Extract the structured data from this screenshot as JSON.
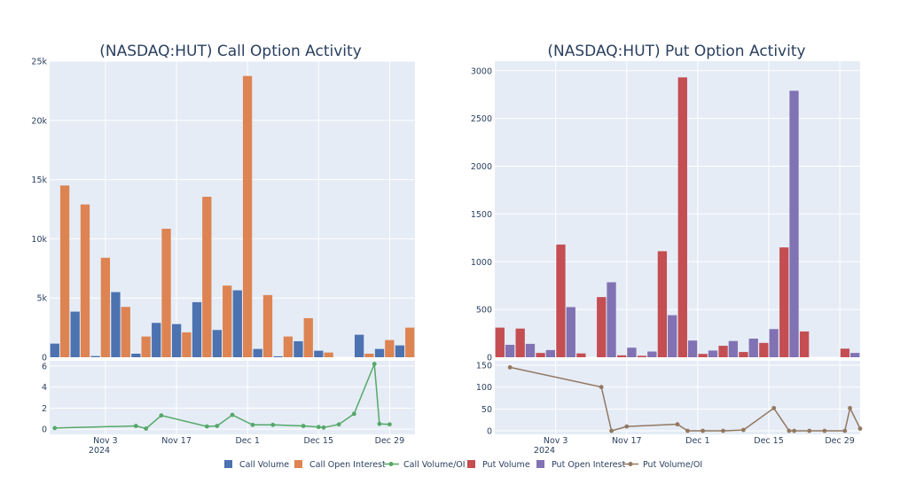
{
  "colors": {
    "plot_bg": "#e5ecf6",
    "grid": "#ffffff",
    "call_volume": "#4c72b0",
    "call_oi": "#dd8452",
    "call_ratio": "#55a868",
    "put_volume": "#c44e52",
    "put_oi": "#8172b3",
    "put_ratio": "#937860"
  },
  "legend": {
    "call_volume": "Call Volume",
    "call_oi": "Call Open Interest",
    "call_ratio": "Call Volume/OI",
    "put_volume": "Put Volume",
    "put_oi": "Put Open Interest",
    "put_ratio": "Put Volume/OI"
  },
  "chart_data": [
    {
      "type": "bar",
      "title": "(NASDAQ:HUT) Call Option Activity",
      "x_tick_labels": [
        "Nov 3",
        "Nov 17",
        "Dec 1",
        "Dec 15",
        "Dec 29"
      ],
      "x_tick_dates": [
        "2024-11-03",
        "2024-11-17",
        "2024-12-01",
        "2024-12-15",
        "2024-12-29"
      ],
      "x_year_label": "2024",
      "xlim": [
        "2024-10-23",
        "2025-01-03"
      ],
      "ylim": [
        0,
        25000
      ],
      "y_ticks": [
        0,
        5000,
        10000,
        15000,
        20000,
        25000
      ],
      "y_tick_labels": [
        "0",
        "5k",
        "10k",
        "15k",
        "20k",
        "25k"
      ],
      "series": [
        {
          "name": "Call Volume",
          "x": [
            "2024-10-25",
            "2024-10-29",
            "2024-11-02",
            "2024-11-06",
            "2024-11-10",
            "2024-11-14",
            "2024-11-18",
            "2024-11-22",
            "2024-11-26",
            "2024-11-30",
            "2024-12-04",
            "2024-12-08",
            "2024-12-12",
            "2024-12-16",
            "2024-12-20",
            "2024-12-24",
            "2024-12-28",
            "2025-01-01"
          ],
          "values": [
            1150,
            3850,
            100,
            5500,
            300,
            2900,
            2800,
            4650,
            2300,
            5650,
            700,
            80,
            1350,
            550,
            0,
            1900,
            700,
            1000
          ]
        },
        {
          "name": "Call Open Interest",
          "x": [
            "2024-10-25",
            "2024-10-29",
            "2024-11-02",
            "2024-11-06",
            "2024-11-10",
            "2024-11-14",
            "2024-11-18",
            "2024-11-22",
            "2024-11-26",
            "2024-11-30",
            "2024-12-04",
            "2024-12-08",
            "2024-12-12",
            "2024-12-16",
            "2024-12-20",
            "2024-12-24",
            "2024-12-28",
            "2025-01-01"
          ],
          "values": [
            14500,
            12900,
            8400,
            4250,
            1750,
            10850,
            2100,
            13550,
            6050,
            23750,
            5250,
            1750,
            3300,
            400,
            0,
            300,
            1450,
            2500
          ]
        }
      ],
      "ratio": {
        "name": "Call Volume/OI",
        "ylim": [
          -0.5,
          6.5
        ],
        "y_ticks": [
          0,
          2,
          4,
          6
        ],
        "x": [
          "2024-10-24",
          "2024-11-09",
          "2024-11-11",
          "2024-11-14",
          "2024-11-23",
          "2024-11-25",
          "2024-11-28",
          "2024-12-02",
          "2024-12-06",
          "2024-12-12",
          "2024-12-15",
          "2024-12-16",
          "2024-12-19",
          "2024-12-22",
          "2024-12-26",
          "2024-12-27",
          "2024-12-29"
        ],
        "values": [
          0.1,
          0.3,
          0.05,
          1.3,
          0.25,
          0.3,
          1.35,
          0.4,
          0.4,
          0.3,
          0.2,
          0.15,
          0.45,
          1.45,
          6.2,
          0.5,
          0.45
        ]
      }
    },
    {
      "type": "bar",
      "title": "(NASDAQ:HUT) Put Option Activity",
      "x_tick_labels": [
        "Nov 3",
        "Nov 17",
        "Dec 1",
        "Dec 15",
        "Dec 29"
      ],
      "x_tick_dates": [
        "2024-11-03",
        "2024-11-17",
        "2024-12-01",
        "2024-12-15",
        "2024-12-29"
      ],
      "x_year_label": "2024",
      "xlim": [
        "2024-10-22",
        "2025-01-02"
      ],
      "ylim": [
        0,
        3100
      ],
      "y_ticks": [
        0,
        500,
        1000,
        1500,
        2000,
        2500,
        3000
      ],
      "y_tick_labels": [
        "0",
        "500",
        "1000",
        "1500",
        "2000",
        "2500",
        "3000"
      ],
      "series": [
        {
          "name": "Put Volume",
          "x": [
            "2024-10-24",
            "2024-10-28",
            "2024-11-01",
            "2024-11-05",
            "2024-11-09",
            "2024-11-13",
            "2024-11-17",
            "2024-11-21",
            "2024-11-25",
            "2024-11-29",
            "2024-12-03",
            "2024-12-07",
            "2024-12-11",
            "2024-12-15",
            "2024-12-19",
            "2024-12-23",
            "2024-12-27",
            "2024-12-31"
          ],
          "values": [
            310,
            300,
            45,
            1180,
            40,
            630,
            20,
            15,
            1110,
            2930,
            35,
            120,
            55,
            150,
            1150,
            270,
            0,
            90
          ]
        },
        {
          "name": "Put Open Interest",
          "x": [
            "2024-10-24",
            "2024-10-28",
            "2024-11-01",
            "2024-11-05",
            "2024-11-09",
            "2024-11-13",
            "2024-11-17",
            "2024-11-21",
            "2024-11-25",
            "2024-11-29",
            "2024-12-03",
            "2024-12-07",
            "2024-12-11",
            "2024-12-15",
            "2024-12-19",
            "2024-12-23",
            "2024-12-27",
            "2024-12-31"
          ],
          "values": [
            130,
            140,
            75,
            525,
            0,
            785,
            100,
            60,
            440,
            175,
            70,
            170,
            195,
            295,
            2790,
            0,
            0,
            45
          ]
        }
      ],
      "ratio": {
        "name": "Put Volume/OI",
        "ylim": [
          -8,
          160
        ],
        "y_ticks": [
          0,
          50,
          100,
          150
        ],
        "y_tick_labels": [
          "0",
          "50",
          "100",
          "150"
        ],
        "x": [
          "2024-10-25",
          "2024-11-12",
          "2024-11-14",
          "2024-11-17",
          "2024-11-27",
          "2024-11-29",
          "2024-12-02",
          "2024-12-06",
          "2024-12-10",
          "2024-12-16",
          "2024-12-19",
          "2024-12-20",
          "2024-12-23",
          "2024-12-26",
          "2024-12-30",
          "2024-12-31",
          "2025-01-02"
        ],
        "values": [
          145,
          100,
          0,
          10,
          15,
          0,
          0,
          0,
          2,
          52,
          0,
          0,
          0,
          0,
          0,
          52,
          5
        ]
      }
    }
  ]
}
